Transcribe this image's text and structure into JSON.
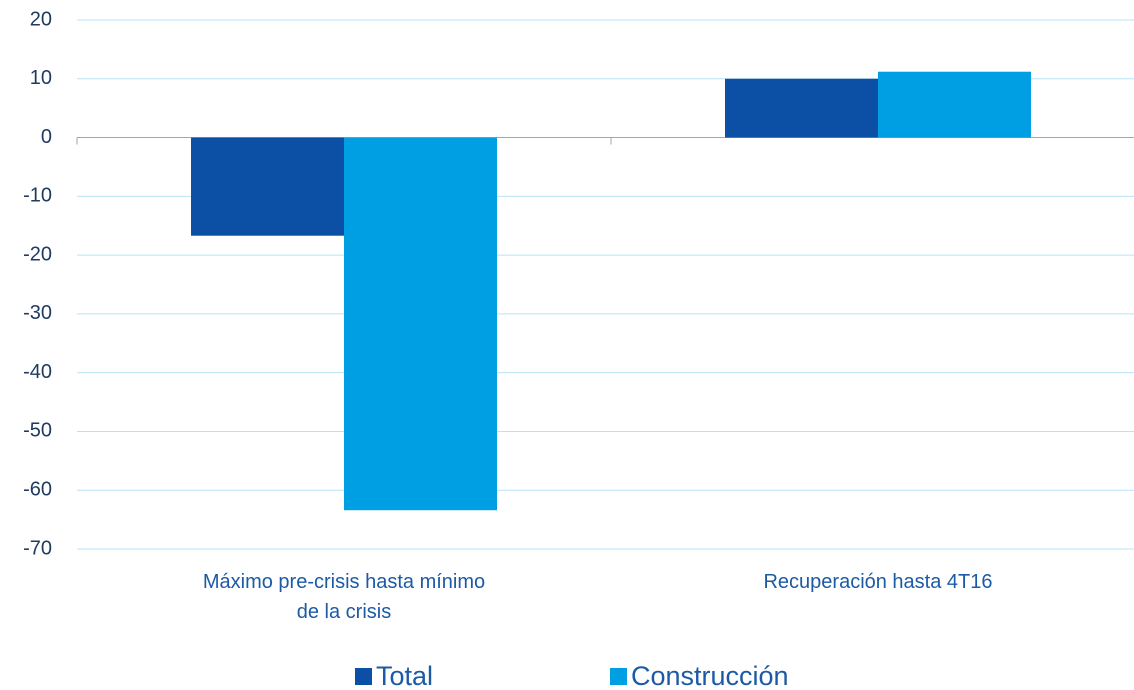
{
  "chart_data": {
    "type": "bar",
    "categories": [
      "Máximo pre-crisis hasta mínimo de la crisis",
      "Recuperación hasta 4T16"
    ],
    "series": [
      {
        "name": "Total",
        "color": "#0b50a4",
        "values": [
          -16.7,
          10.0
        ]
      },
      {
        "name": "Construcción",
        "color": "#009fe3",
        "values": [
          -63.4,
          11.2
        ]
      }
    ],
    "ylim": [
      -70,
      20
    ],
    "yticks": [
      -70,
      -60,
      -50,
      -40,
      -30,
      -20,
      -10,
      0,
      10,
      20
    ],
    "grid": true,
    "legend": "bottom"
  }
}
